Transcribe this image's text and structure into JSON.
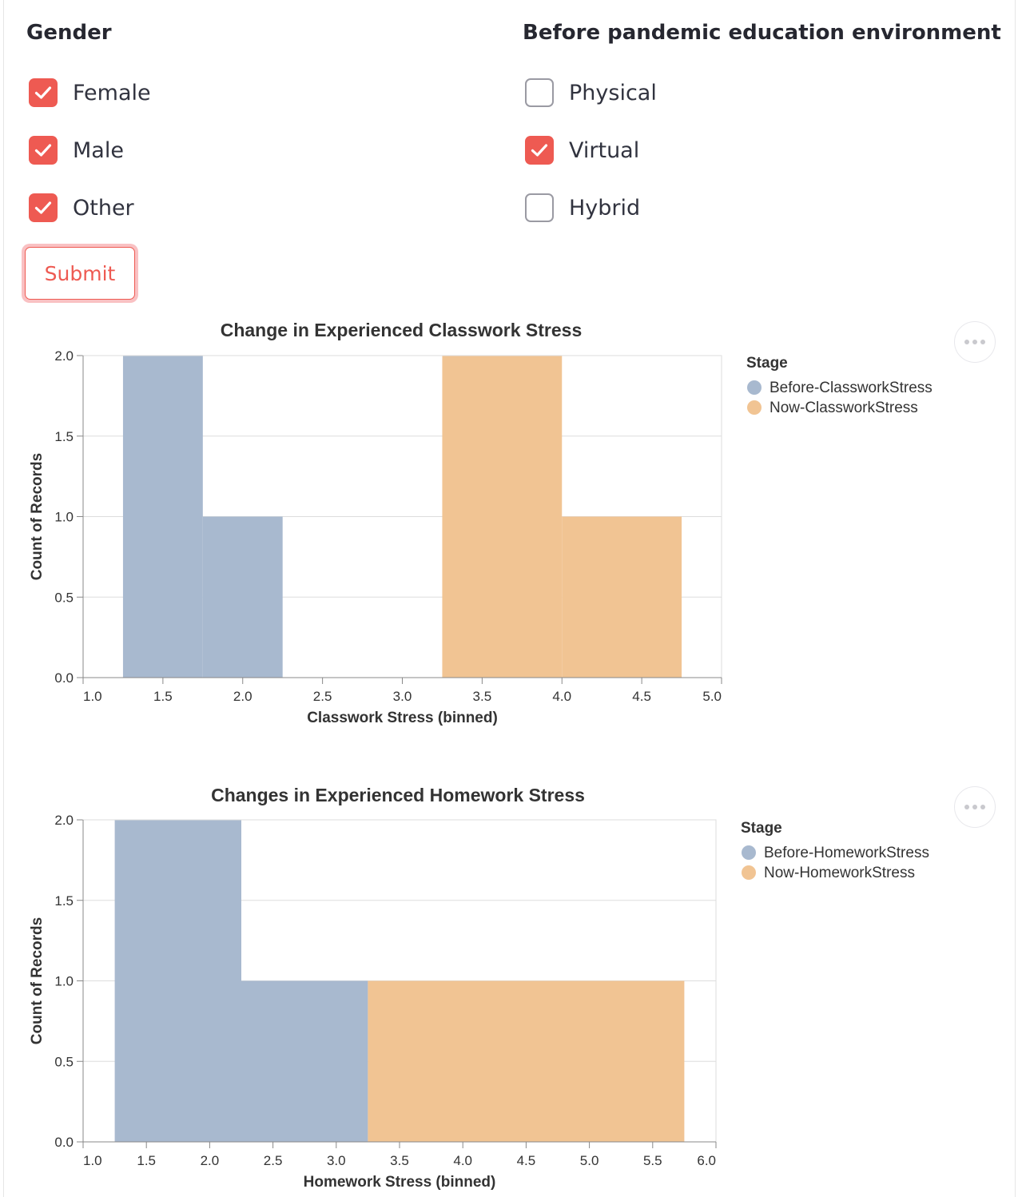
{
  "gender": {
    "title": "Gender",
    "options": [
      {
        "label": "Female",
        "checked": true
      },
      {
        "label": "Male",
        "checked": true
      },
      {
        "label": "Other",
        "checked": true
      }
    ]
  },
  "environment": {
    "title": "Before pandemic education environment",
    "options": [
      {
        "label": "Physical",
        "checked": false
      },
      {
        "label": "Virtual",
        "checked": true
      },
      {
        "label": "Hybrid",
        "checked": false
      }
    ]
  },
  "submit_label": "Submit",
  "colors": {
    "accent": "#ee5a52",
    "before": "#a8b9cf",
    "now": "#f1c493",
    "grid": "#dddddd"
  },
  "chart_data": [
    {
      "type": "bar",
      "title": "Change in Experienced Classwork Stress",
      "xlabel": "Classwork Stress (binned)",
      "ylabel": "Count of Records",
      "xlim": [
        1.0,
        5.0
      ],
      "ylim": [
        0,
        2.0
      ],
      "xticks": [
        "1.0",
        "1.5",
        "2.0",
        "2.5",
        "3.0",
        "3.5",
        "4.0",
        "4.5",
        "5.0"
      ],
      "yticks": [
        "0.0",
        "0.5",
        "1.0",
        "1.5",
        "2.0"
      ],
      "legend_title": "Stage",
      "legend_position": "right",
      "series": [
        {
          "name": "Before-ClassworkStress",
          "color": "#a8b9cf",
          "bins": [
            {
              "x0": 1.25,
              "x1": 1.75,
              "count": 2
            },
            {
              "x0": 1.75,
              "x1": 2.25,
              "count": 1
            }
          ]
        },
        {
          "name": "Now-ClassworkStress",
          "color": "#f1c493",
          "bins": [
            {
              "x0": 3.25,
              "x1": 4.0,
              "count": 2
            },
            {
              "x0": 4.0,
              "x1": 4.75,
              "count": 1
            }
          ]
        }
      ]
    },
    {
      "type": "bar",
      "title": "Changes in Experienced Homework Stress",
      "xlabel": "Homework Stress (binned)",
      "ylabel": "Count of Records",
      "xlim": [
        1.0,
        6.0
      ],
      "ylim": [
        0,
        2.0
      ],
      "xticks": [
        "1.0",
        "1.5",
        "2.0",
        "2.5",
        "3.0",
        "3.5",
        "4.0",
        "4.5",
        "5.0",
        "5.5",
        "6.0"
      ],
      "yticks": [
        "0.0",
        "0.5",
        "1.0",
        "1.5",
        "2.0"
      ],
      "legend_title": "Stage",
      "legend_position": "right",
      "series": [
        {
          "name": "Before-HomeworkStress",
          "color": "#a8b9cf",
          "bins": [
            {
              "x0": 1.25,
              "x1": 2.25,
              "count": 2
            },
            {
              "x0": 2.25,
              "x1": 3.25,
              "count": 1
            }
          ]
        },
        {
          "name": "Now-HomeworkStress",
          "color": "#f1c493",
          "bins": [
            {
              "x0": 3.25,
              "x1": 5.75,
              "count": 1
            }
          ]
        }
      ]
    }
  ]
}
